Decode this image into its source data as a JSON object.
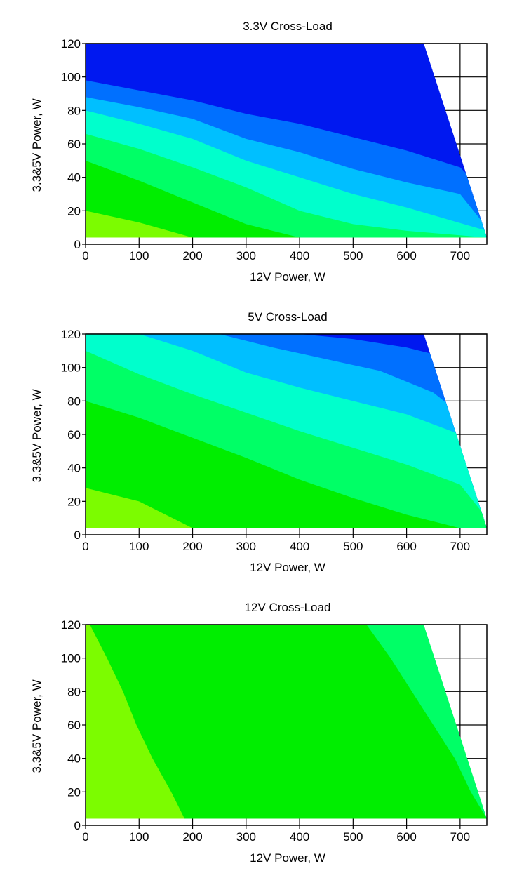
{
  "colors": {
    "background": "#ffffff",
    "axis": "#000000",
    "grid": "#000000"
  },
  "chart_data": [
    {
      "type": "heatmap",
      "title": "3.3V Cross-Load",
      "xlabel": "12V Power, W",
      "ylabel": "3.3&5V Power, W",
      "xlim": [
        0,
        750
      ],
      "ylim": [
        0,
        120
      ],
      "xticks": [
        "0",
        "100",
        "200",
        "300",
        "400",
        "500",
        "600",
        "700"
      ],
      "yticks": [
        "0",
        "20",
        "40",
        "60",
        "80",
        "100",
        "120"
      ],
      "grid": true,
      "load_region": {
        "y_min": 4,
        "y_max": 120,
        "x_max_at_y_max": 632,
        "x_max_at_y_min": 750
      },
      "bands": [
        {
          "color": "#7cfc00",
          "upper": [
            [
              0,
              20
            ],
            [
              100,
              13
            ],
            [
              200,
              4
            ],
            [
              300,
              4
            ]
          ]
        },
        {
          "color": "#00ee00",
          "upper": [
            [
              0,
              50
            ],
            [
              100,
              38
            ],
            [
              200,
              25
            ],
            [
              300,
              12
            ],
            [
              400,
              4
            ],
            [
              500,
              4
            ]
          ]
        },
        {
          "color": "#00ff66",
          "upper": [
            [
              0,
              66
            ],
            [
              100,
              57
            ],
            [
              200,
              46
            ],
            [
              300,
              34
            ],
            [
              400,
              20
            ],
            [
              500,
              12
            ],
            [
              600,
              8
            ],
            [
              750,
              4
            ]
          ]
        },
        {
          "color": "#00ffcc",
          "upper": [
            [
              0,
              80
            ],
            [
              100,
              72
            ],
            [
              200,
              63
            ],
            [
              300,
              50
            ],
            [
              400,
              40
            ],
            [
              500,
              30
            ],
            [
              600,
              22
            ],
            [
              750,
              8
            ]
          ]
        },
        {
          "color": "#00bfff",
          "upper": [
            [
              0,
              88
            ],
            [
              100,
              82
            ],
            [
              200,
              75
            ],
            [
              300,
              63
            ],
            [
              400,
              55
            ],
            [
              500,
              45
            ],
            [
              600,
              37
            ],
            [
              700,
              30
            ],
            [
              750,
              10
            ]
          ]
        },
        {
          "color": "#0070ff",
          "upper": [
            [
              0,
              98
            ],
            [
              100,
              92
            ],
            [
              200,
              86
            ],
            [
              300,
              78
            ],
            [
              400,
              72
            ],
            [
              500,
              64
            ],
            [
              600,
              56
            ],
            [
              700,
              46
            ],
            [
              750,
              30
            ]
          ]
        },
        {
          "color": "#0018f0",
          "upper": [
            [
              0,
              120
            ],
            [
              750,
              120
            ]
          ]
        }
      ]
    },
    {
      "type": "heatmap",
      "title": "5V Cross-Load",
      "xlabel": "12V Power, W",
      "ylabel": "3.3&5V Power, W",
      "xlim": [
        0,
        750
      ],
      "ylim": [
        0,
        120
      ],
      "xticks": [
        "0",
        "100",
        "200",
        "300",
        "400",
        "500",
        "600",
        "700"
      ],
      "yticks": [
        "0",
        "20",
        "40",
        "60",
        "80",
        "100",
        "120"
      ],
      "grid": true,
      "load_region": {
        "y_min": 4,
        "y_max": 120,
        "x_max_at_y_max": 632,
        "x_max_at_y_min": 750
      },
      "bands": [
        {
          "color": "#7cfc00",
          "upper": [
            [
              0,
              28
            ],
            [
              100,
              20
            ],
            [
              200,
              4
            ],
            [
              250,
              4
            ]
          ]
        },
        {
          "color": "#00ee00",
          "upper": [
            [
              0,
              80
            ],
            [
              100,
              70
            ],
            [
              200,
              58
            ],
            [
              300,
              46
            ],
            [
              400,
              33
            ],
            [
              500,
              22
            ],
            [
              600,
              12
            ],
            [
              700,
              4
            ],
            [
              750,
              4
            ]
          ]
        },
        {
          "color": "#00ff66",
          "upper": [
            [
              0,
              110
            ],
            [
              100,
              96
            ],
            [
              200,
              84
            ],
            [
              300,
              73
            ],
            [
              400,
              62
            ],
            [
              500,
              52
            ],
            [
              600,
              42
            ],
            [
              700,
              30
            ],
            [
              750,
              10
            ]
          ]
        },
        {
          "color": "#00ffcc",
          "upper": [
            [
              0,
              120
            ],
            [
              100,
              120
            ],
            [
              200,
              110
            ],
            [
              300,
              97
            ],
            [
              400,
              88
            ],
            [
              500,
              80
            ],
            [
              600,
              72
            ],
            [
              700,
              60
            ],
            [
              750,
              30
            ]
          ]
        },
        {
          "color": "#00bfff",
          "upper": [
            [
              0,
              120
            ],
            [
              150,
              120
            ],
            [
              250,
              120
            ],
            [
              350,
              112
            ],
            [
              450,
              105
            ],
            [
              550,
              98
            ],
            [
              650,
              85
            ],
            [
              750,
              60
            ]
          ]
        },
        {
          "color": "#0070ff",
          "upper": [
            [
              0,
              120
            ],
            [
              280,
              120
            ],
            [
              400,
              120
            ],
            [
              500,
              117
            ],
            [
              600,
              112
            ],
            [
              700,
              104
            ],
            [
              750,
              95
            ]
          ]
        },
        {
          "color": "#0018f0",
          "upper": [
            [
              0,
              120
            ],
            [
              750,
              120
            ]
          ]
        }
      ]
    },
    {
      "type": "heatmap",
      "title": "12V Cross-Load",
      "xlabel": "12V Power, W",
      "ylabel": "3.3&5V Power, W",
      "xlim": [
        0,
        750
      ],
      "ylim": [
        0,
        120
      ],
      "xticks": [
        "0",
        "100",
        "200",
        "300",
        "400",
        "500",
        "600",
        "700"
      ],
      "yticks": [
        "0",
        "20",
        "40",
        "60",
        "80",
        "100",
        "120"
      ],
      "grid": true,
      "load_region": {
        "y_min": 4,
        "y_max": 120,
        "x_max_at_y_max": 632,
        "x_max_at_y_min": 750
      },
      "vertical_bands": [
        {
          "color": "#7cfc00",
          "right": [
            [
              4,
              185
            ],
            [
              20,
              160
            ],
            [
              40,
              125
            ],
            [
              60,
              95
            ],
            [
              80,
              70
            ],
            [
              100,
              40
            ],
            [
              120,
              8
            ]
          ]
        },
        {
          "color": "#00ee00",
          "right": [
            [
              4,
              750
            ],
            [
              20,
              720
            ],
            [
              40,
              690
            ],
            [
              60,
              650
            ],
            [
              80,
              610
            ],
            [
              100,
              570
            ],
            [
              120,
              525
            ]
          ]
        },
        {
          "color": "#00ff66",
          "right": [
            [
              4,
              750
            ],
            [
              120,
              632
            ]
          ]
        }
      ]
    }
  ]
}
